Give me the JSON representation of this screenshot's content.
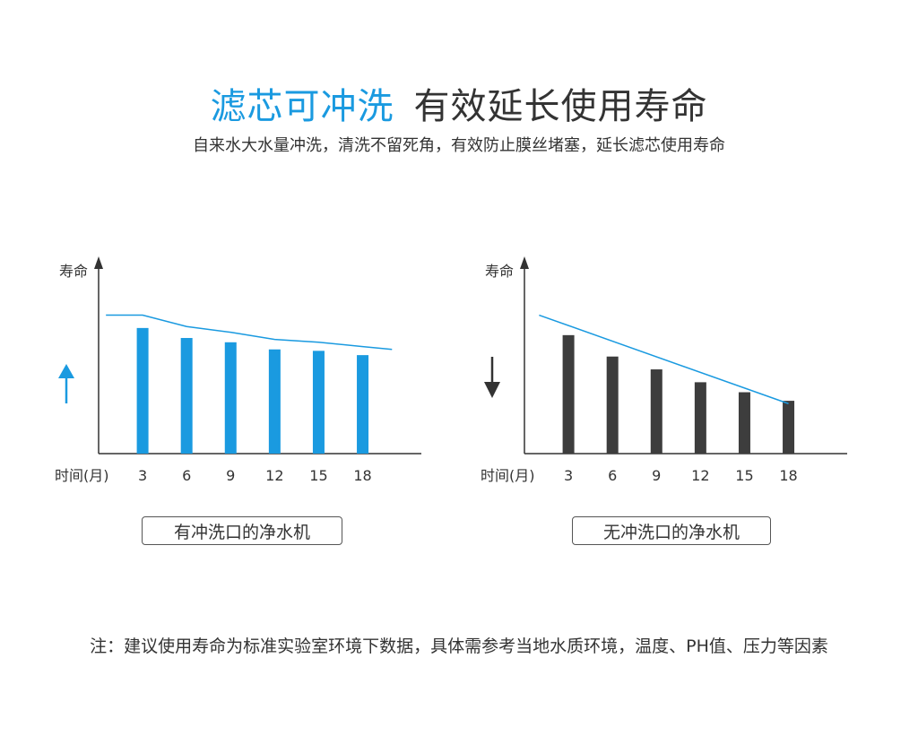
{
  "header": {
    "title_accent": "滤芯可冲洗",
    "title_rest": "有效延长使用寿命",
    "subtitle": "自来水大水量冲洗，清洗不留死角，有效防止膜丝堵塞，延长滤芯使用寿命"
  },
  "footnote": "注：建议使用寿命为标准实验室环境下数据，具体需参考当地水质环境，温度、PH值、压力等因素",
  "colors": {
    "accent": "#1a9ae0",
    "dark_bar": "#3d3d3d",
    "text": "#333333"
  },
  "chart_data": [
    {
      "type": "bar",
      "caption": "有冲洗口的净水机",
      "ylabel": "寿命",
      "xlabel": "时间(月)",
      "categories": [
        "3",
        "6",
        "9",
        "12",
        "15",
        "18"
      ],
      "values": [
        88,
        81,
        78,
        73,
        72,
        69
      ],
      "trend_x": [
        0.5,
        3,
        6,
        9,
        12,
        15,
        18,
        20
      ],
      "trend_y": [
        97,
        97,
        89,
        85,
        80,
        78,
        75,
        73
      ],
      "ylim": [
        0,
        130
      ],
      "xlim": [
        0,
        22
      ],
      "bar_color": "#1a9ae0",
      "trend_color": "#1a9ae0",
      "arrow": "up",
      "arrow_color": "#1a9ae0",
      "arrow_icon": "arrow-up-icon"
    },
    {
      "type": "bar",
      "caption": "无冲洗口的净水机",
      "ylabel": "寿命",
      "xlabel": "时间(月)",
      "categories": [
        "3",
        "6",
        "9",
        "12",
        "15",
        "18"
      ],
      "values": [
        83,
        68,
        59,
        50,
        43,
        37
      ],
      "trend_x": [
        1,
        18
      ],
      "trend_y": [
        97,
        35
      ],
      "ylim": [
        0,
        130
      ],
      "xlim": [
        0,
        22
      ],
      "bar_color": "#3d3d3d",
      "trend_color": "#1a9ae0",
      "arrow": "down",
      "arrow_color": "#333333",
      "arrow_icon": "arrow-down-icon"
    }
  ]
}
